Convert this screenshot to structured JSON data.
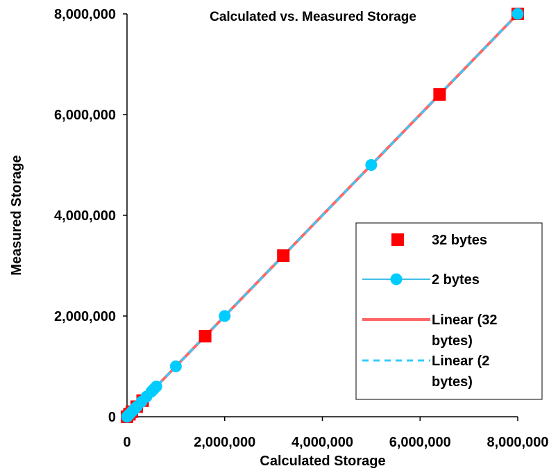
{
  "chart_data": {
    "type": "scatter",
    "title": "Calculated vs. Measured Storage",
    "xlabel": "Calculated Storage",
    "ylabel": "Measured Storage",
    "xlim": [
      0,
      8000000
    ],
    "ylim": [
      0,
      8000000
    ],
    "x_ticks": [
      "0",
      "2,000,000",
      "4,000,000",
      "6,000,000",
      "8,000,000"
    ],
    "y_ticks": [
      "0",
      "2,000,000",
      "4,000,000",
      "6,000,000",
      "8,000,000"
    ],
    "x_tick_values": [
      0,
      2000000,
      4000000,
      6000000,
      8000000
    ],
    "y_tick_values": [
      0,
      2000000,
      4000000,
      6000000,
      8000000
    ],
    "legend_position": "right",
    "series": [
      {
        "name": "32 bytes",
        "marker": "square",
        "color": "#ff0000",
        "points": [
          [
            0,
            0
          ],
          [
            50000,
            50000
          ],
          [
            100000,
            100000
          ],
          [
            200000,
            200000
          ],
          [
            320000,
            320000
          ],
          [
            1600000,
            1600000
          ],
          [
            3200000,
            3200000
          ],
          [
            6400000,
            6400000
          ],
          [
            8000000,
            8000000
          ]
        ]
      },
      {
        "name": "2 bytes",
        "marker": "circle",
        "color": "#00ccff",
        "points": [
          [
            0,
            0
          ],
          [
            20000,
            20000
          ],
          [
            50000,
            50000
          ],
          [
            100000,
            100000
          ],
          [
            150000,
            150000
          ],
          [
            200000,
            200000
          ],
          [
            300000,
            300000
          ],
          [
            400000,
            400000
          ],
          [
            500000,
            500000
          ],
          [
            550000,
            550000
          ],
          [
            600000,
            600000
          ],
          [
            1000000,
            1000000
          ],
          [
            2000000,
            2000000
          ],
          [
            5000000,
            5000000
          ],
          [
            8000000,
            8000000
          ]
        ]
      }
    ],
    "trendlines": [
      {
        "name": "Linear (32 bytes)",
        "color": "#ff6666",
        "style": "solid",
        "x": [
          0,
          8000000
        ],
        "y": [
          0,
          8000000
        ]
      },
      {
        "name": "Linear (2 bytes)",
        "color": "#33ccff",
        "style": "dashed",
        "x": [
          0,
          8000000
        ],
        "y": [
          0,
          8000000
        ]
      }
    ],
    "legend": [
      {
        "label_lines": [
          "32 bytes"
        ]
      },
      {
        "label_lines": [
          "2 bytes"
        ]
      },
      {
        "label_lines": [
          "Linear (32",
          "bytes)"
        ]
      },
      {
        "label_lines": [
          "Linear (2",
          "bytes)"
        ]
      }
    ]
  }
}
